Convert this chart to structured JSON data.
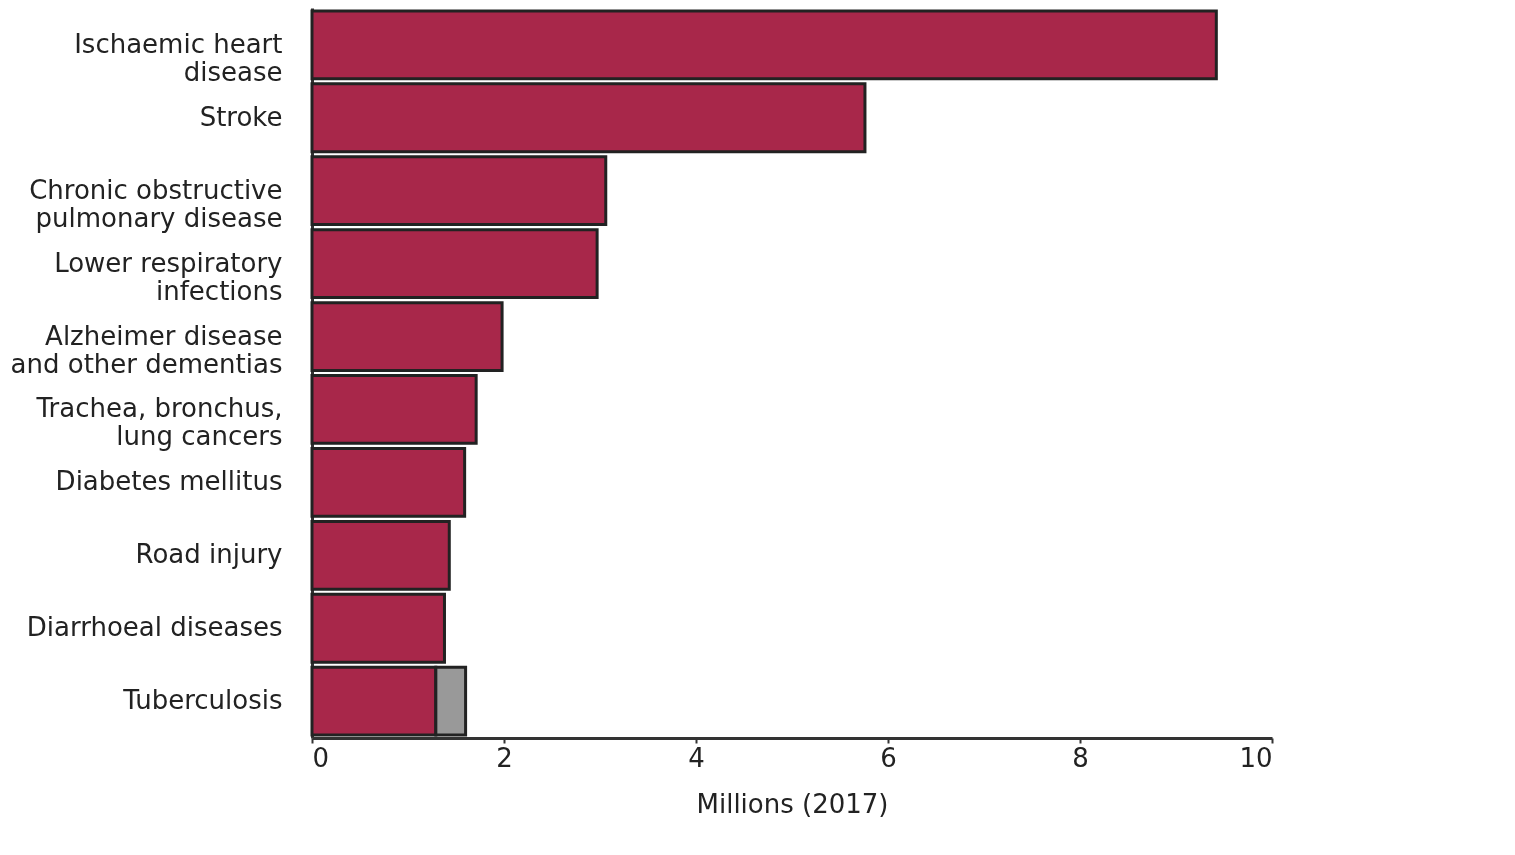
{
  "chart_data": {
    "type": "bar",
    "orientation": "horizontal",
    "stacked": true,
    "xlabel": "Millions (2017)",
    "categories": [
      "Ischaemic heart disease",
      "Stroke",
      "Chronic obstructive pulmonary disease",
      "Lower respiratory infections",
      "Alzheimer disease and other dementias",
      "Trachea, bronchus, lung cancers",
      "Diabetes mellitus",
      "Road injury",
      "Diarrhoeal diseases",
      "Tuberculosis"
    ],
    "series": [
      {
        "color": "#a8274a",
        "values": [
          9.42,
          5.76,
          3.06,
          2.97,
          1.98,
          1.71,
          1.59,
          1.43,
          1.38,
          1.29
        ]
      },
      {
        "color": "#999999",
        "values": [
          null,
          null,
          null,
          null,
          null,
          null,
          null,
          null,
          null,
          0.31
        ]
      }
    ],
    "xlim": [
      0,
      10
    ],
    "xticks": [
      0,
      2,
      4,
      6,
      8,
      10
    ],
    "grid": false,
    "legend": false
  }
}
